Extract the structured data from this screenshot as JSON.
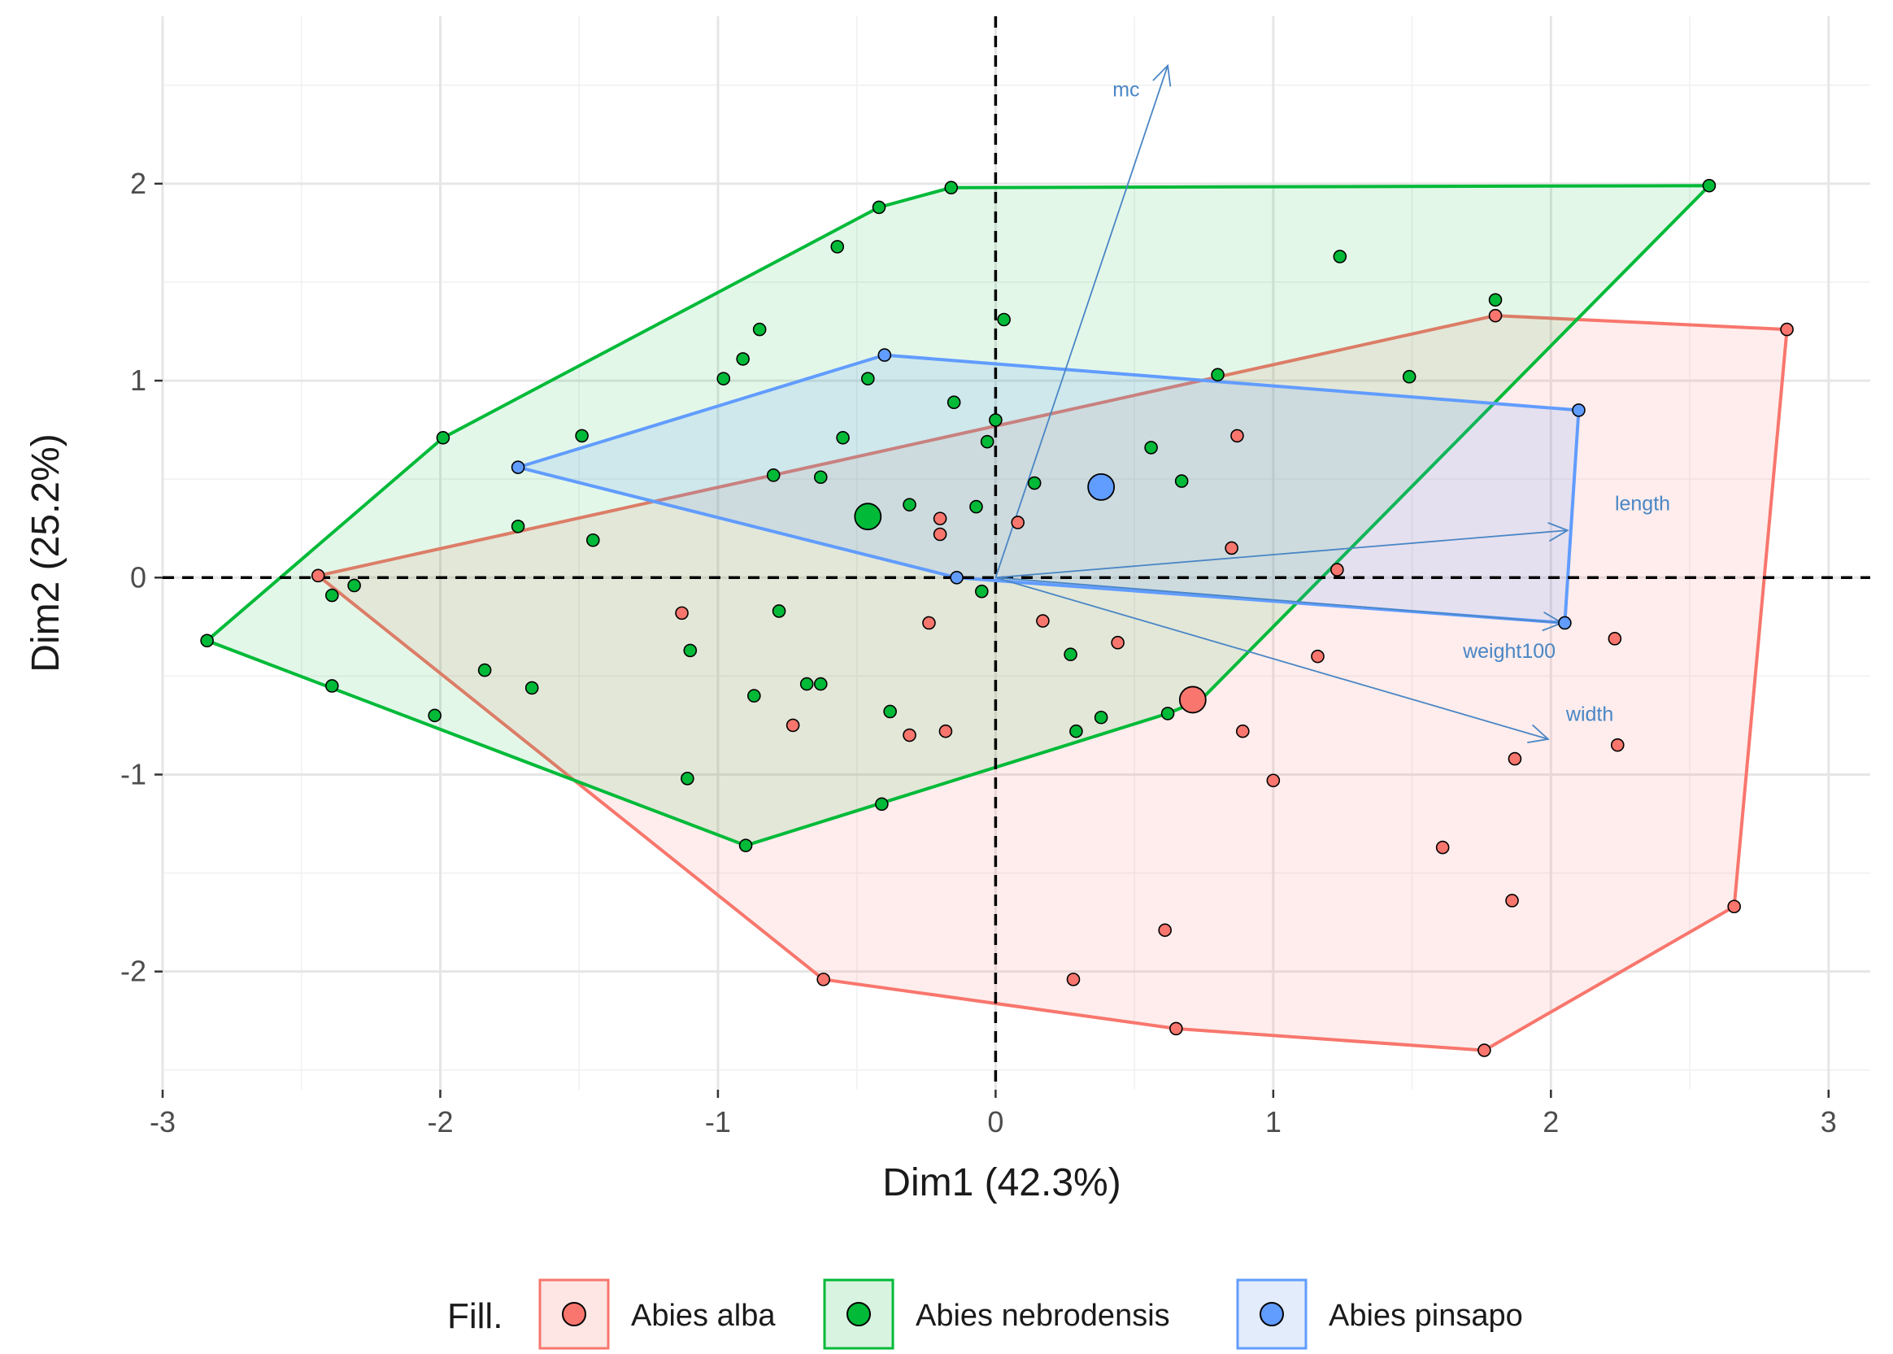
{
  "chart_data": {
    "type": "scatter",
    "subtype": "pca-biplot",
    "title": "",
    "xlabel": "Dim1 (42.3%)",
    "ylabel": "Dim2 (25.2%)",
    "xlim": [
      -3,
      3.15
    ],
    "ylim": [
      -2.6,
      2.85
    ],
    "xticks": [
      -3,
      -2,
      -1,
      0,
      1,
      2,
      3
    ],
    "yticks": [
      -2,
      -1,
      0,
      1,
      2
    ],
    "xtick_labels": [
      "-3",
      "-2",
      "-1",
      "0",
      "1",
      "2",
      "3"
    ],
    "ytick_labels": [
      "-2",
      "-1",
      "0",
      "1",
      "2"
    ],
    "grid": true,
    "legend": {
      "title": "Fill.",
      "position": "bottom",
      "entries": [
        "Abies alba",
        "Abies nebrodensis",
        "Abies pinsapo"
      ]
    },
    "series": [
      {
        "name": "Abies alba",
        "color": "#f8766d",
        "stroke": "#f8766d",
        "centroid": [
          0.71,
          -0.62
        ],
        "hull": [
          [
            -2.44,
            0.01
          ],
          [
            1.8,
            1.33
          ],
          [
            2.85,
            1.26
          ],
          [
            2.66,
            -1.67
          ],
          [
            1.76,
            -2.4
          ],
          [
            0.65,
            -2.29
          ],
          [
            -0.62,
            -2.04
          ]
        ],
        "points": [
          [
            -2.44,
            0.01
          ],
          [
            1.8,
            1.33
          ],
          [
            2.85,
            1.26
          ],
          [
            2.66,
            -1.67
          ],
          [
            1.76,
            -2.4
          ],
          [
            0.65,
            -2.29
          ],
          [
            -0.62,
            -2.04
          ],
          [
            0.87,
            0.72
          ],
          [
            0.85,
            0.15
          ],
          [
            -0.2,
            0.3
          ],
          [
            -0.2,
            0.22
          ],
          [
            0.08,
            0.28
          ],
          [
            1.23,
            0.04
          ],
          [
            -1.13,
            -0.18
          ],
          [
            -0.24,
            -0.23
          ],
          [
            0.17,
            -0.22
          ],
          [
            0.44,
            -0.33
          ],
          [
            -0.73,
            -0.75
          ],
          [
            -0.31,
            -0.8
          ],
          [
            -0.18,
            -0.78
          ],
          [
            0.89,
            -0.78
          ],
          [
            1.16,
            -0.4
          ],
          [
            1.0,
            -1.03
          ],
          [
            1.87,
            -0.92
          ],
          [
            2.23,
            -0.31
          ],
          [
            2.24,
            -0.85
          ],
          [
            1.61,
            -1.37
          ],
          [
            1.86,
            -1.64
          ],
          [
            0.61,
            -1.79
          ],
          [
            0.28,
            -2.04
          ]
        ]
      },
      {
        "name": "Abies nebrodensis",
        "color": "#00ba38",
        "stroke": "#00ba38",
        "centroid": [
          -0.46,
          0.31
        ],
        "hull": [
          [
            -2.84,
            -0.32
          ],
          [
            -1.99,
            0.71
          ],
          [
            -0.42,
            1.88
          ],
          [
            -0.16,
            1.98
          ],
          [
            2.57,
            1.99
          ],
          [
            0.74,
            -0.62
          ],
          [
            0.62,
            -0.69
          ],
          [
            -0.9,
            -1.36
          ]
        ],
        "points": [
          [
            -2.84,
            -0.32
          ],
          [
            -1.99,
            0.71
          ],
          [
            -0.42,
            1.88
          ],
          [
            -0.16,
            1.98
          ],
          [
            2.57,
            1.99
          ],
          [
            0.62,
            -0.69
          ],
          [
            -0.9,
            -1.36
          ],
          [
            -0.57,
            1.68
          ],
          [
            -0.85,
            1.26
          ],
          [
            -0.91,
            1.11
          ],
          [
            -0.98,
            1.01
          ],
          [
            1.24,
            1.63
          ],
          [
            1.8,
            1.41
          ],
          [
            0.03,
            1.31
          ],
          [
            1.49,
            1.02
          ],
          [
            0.8,
            1.03
          ],
          [
            -0.46,
            1.01
          ],
          [
            -0.15,
            0.89
          ],
          [
            0.0,
            0.8
          ],
          [
            -1.49,
            0.72
          ],
          [
            -0.55,
            0.71
          ],
          [
            -0.03,
            0.69
          ],
          [
            0.56,
            0.66
          ],
          [
            -0.8,
            0.52
          ],
          [
            -0.63,
            0.51
          ],
          [
            0.67,
            0.49
          ],
          [
            0.14,
            0.48
          ],
          [
            -0.31,
            0.37
          ],
          [
            -0.07,
            0.36
          ],
          [
            -1.72,
            0.26
          ],
          [
            -1.45,
            0.19
          ],
          [
            -2.31,
            -0.04
          ],
          [
            -2.39,
            -0.09
          ],
          [
            -0.05,
            -0.07
          ],
          [
            -1.1,
            -0.37
          ],
          [
            -0.78,
            -0.17
          ],
          [
            -1.84,
            -0.47
          ],
          [
            -2.39,
            -0.55
          ],
          [
            -1.67,
            -0.56
          ],
          [
            -0.68,
            -0.54
          ],
          [
            -0.63,
            -0.54
          ],
          [
            -0.87,
            -0.6
          ],
          [
            -0.38,
            -0.68
          ],
          [
            0.27,
            -0.39
          ],
          [
            -2.02,
            -0.7
          ],
          [
            0.38,
            -0.71
          ],
          [
            0.29,
            -0.78
          ],
          [
            -1.11,
            -1.02
          ],
          [
            -0.41,
            -1.15
          ]
        ]
      },
      {
        "name": "Abies pinsapo",
        "color": "#619cff",
        "stroke": "#619cff",
        "centroid": [
          0.38,
          0.46
        ],
        "hull": [
          [
            -1.72,
            0.56
          ],
          [
            -0.4,
            1.13
          ],
          [
            2.1,
            0.85
          ],
          [
            2.05,
            -0.23
          ],
          [
            -0.14,
            0.0
          ]
        ],
        "points": [
          [
            -1.72,
            0.56
          ],
          [
            -0.4,
            1.13
          ],
          [
            2.1,
            0.85
          ],
          [
            2.05,
            -0.23
          ],
          [
            -0.14,
            0.0
          ]
        ]
      }
    ],
    "variables": [
      {
        "name": "mc",
        "x": 0.62,
        "y": 2.6,
        "label_pos": [
          0.47,
          2.47
        ]
      },
      {
        "name": "length",
        "x": 2.06,
        "y": 0.24,
        "label_pos": [
          2.33,
          0.37
        ]
      },
      {
        "name": "weight100",
        "x": 2.04,
        "y": -0.23,
        "label_pos": [
          1.85,
          -0.38
        ]
      },
      {
        "name": "width",
        "x": 1.99,
        "y": -0.82,
        "label_pos": [
          2.14,
          -0.7
        ]
      }
    ]
  }
}
